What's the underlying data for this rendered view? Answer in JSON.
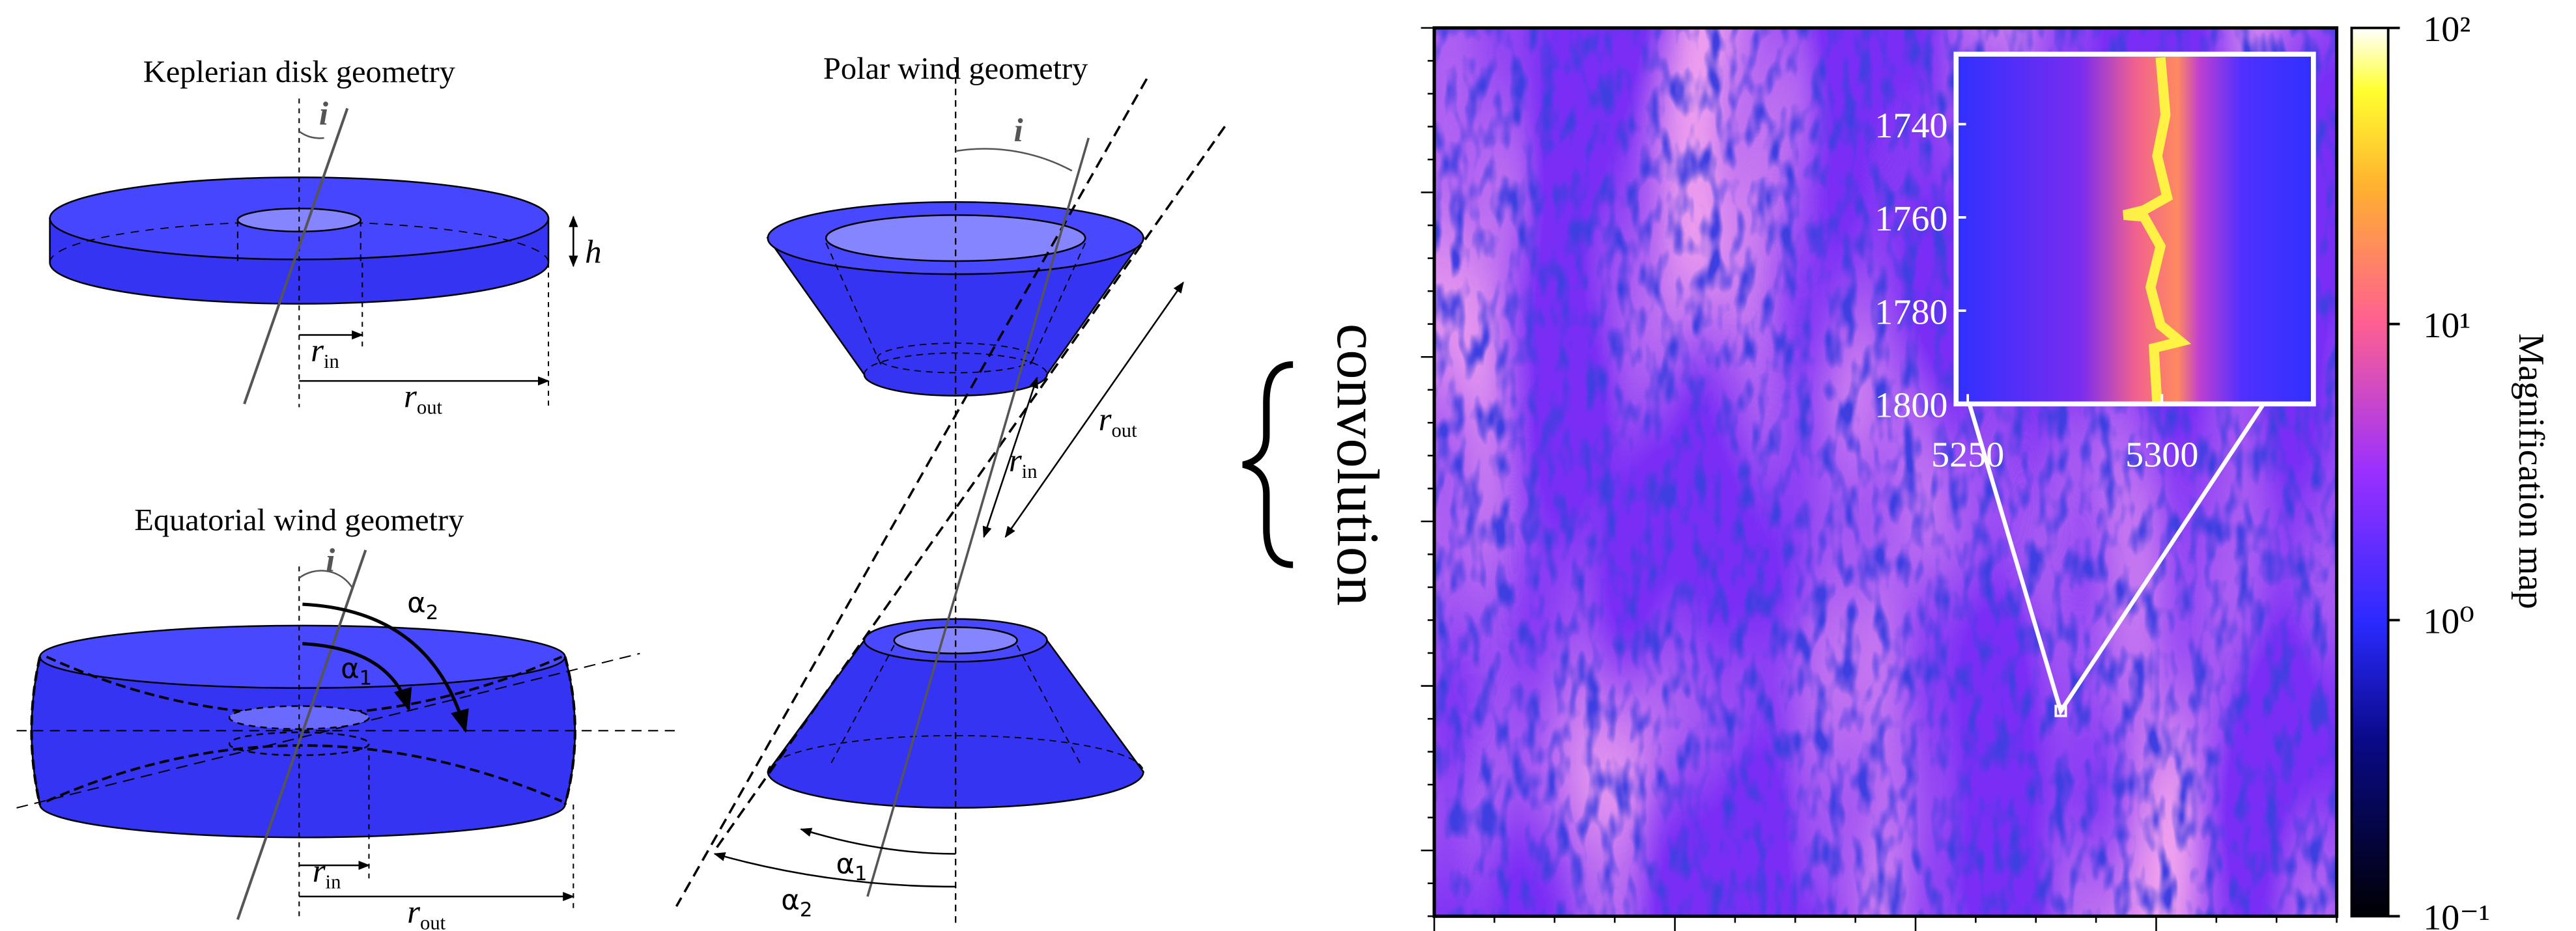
{
  "keplerian": {
    "title": "Keplerian disk geometry",
    "inclination": "i",
    "height": "h",
    "r_in": [
      "r",
      "in"
    ],
    "r_out": [
      "r",
      "out"
    ]
  },
  "polar": {
    "title": "Polar wind geometry",
    "inclination": "i",
    "r_in": [
      "r",
      "in"
    ],
    "r_out": [
      "r",
      "out"
    ],
    "alpha_1": [
      "α",
      "1"
    ],
    "alpha_2": [
      "α",
      "2"
    ]
  },
  "equatorial": {
    "title": "Equatorial wind geometry",
    "inclination": "i",
    "r_in": [
      "r",
      "in"
    ],
    "r_out": [
      "r",
      "out"
    ],
    "alpha_1": [
      "α",
      "1"
    ],
    "alpha_2": [
      "α",
      "2"
    ]
  },
  "operator": "convolution",
  "map": {
    "inset": {
      "xlim": [
        5247,
        5339
      ],
      "xticks": [
        5250,
        5300
      ],
      "ylim": [
        1725,
        1800
      ],
      "yticks": [
        1740,
        1760,
        1780,
        1800
      ]
    },
    "colorbar": {
      "label": "Magnification map",
      "log": true,
      "lim": [
        0.1,
        100
      ],
      "ticks": [
        {
          "value": 100,
          "label": "10²"
        },
        {
          "value": 10,
          "label": "10¹"
        },
        {
          "value": 1,
          "label": "10⁰"
        },
        {
          "value": 0.1,
          "label": "10⁻¹"
        }
      ]
    }
  }
}
